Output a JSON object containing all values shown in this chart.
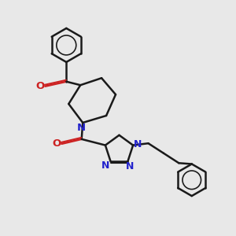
{
  "bg_color": "#e8e8e8",
  "bond_color": "#1a1a1a",
  "nitrogen_color": "#2222cc",
  "oxygen_color": "#cc2222",
  "bond_width": 1.8,
  "fig_size": [
    3.0,
    3.0
  ],
  "dpi": 100,
  "xlim": [
    0,
    10
  ],
  "ylim": [
    0,
    10
  ],
  "font_size": 9.5
}
